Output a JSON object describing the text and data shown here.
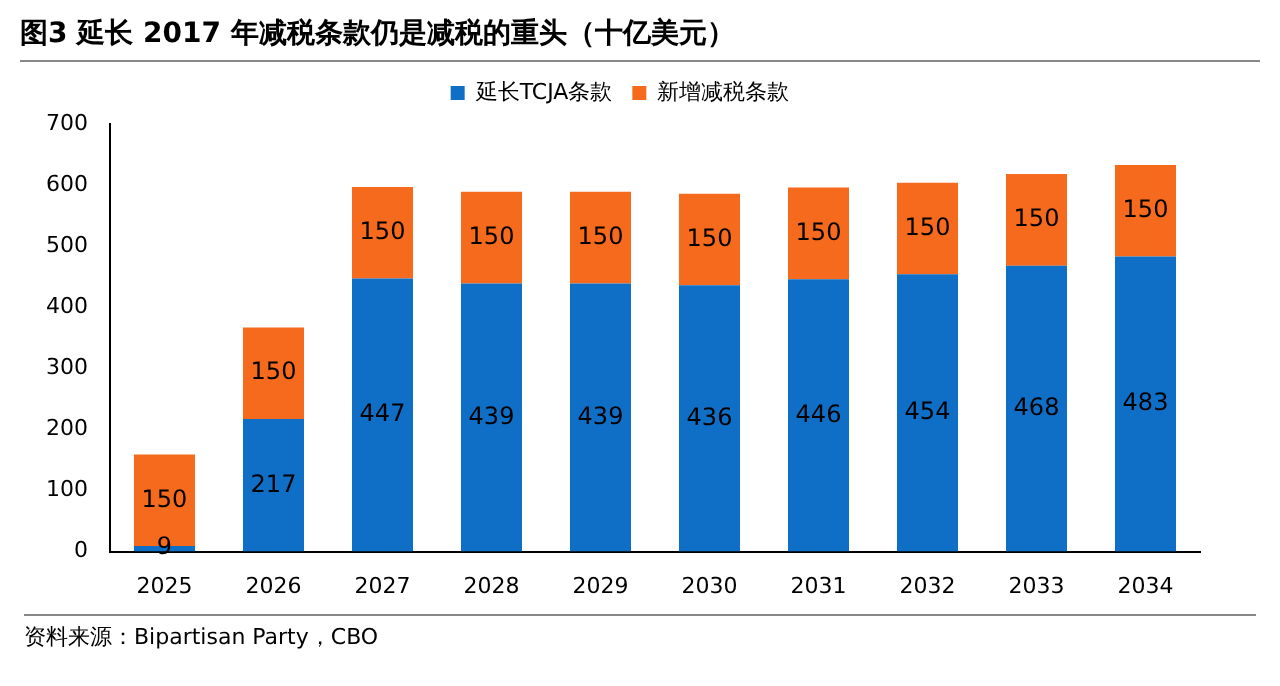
{
  "chart_data": {
    "type": "bar",
    "title": "图3  延长 2017 年减税条款仍是减税的重头（十亿美元）",
    "categories": [
      "2025",
      "2026",
      "2027",
      "2028",
      "2029",
      "2030",
      "2031",
      "2032",
      "2033",
      "2034"
    ],
    "series": [
      {
        "name": "延长TCJA条款",
        "color": "#0f6fc6",
        "values": [
          9,
          217,
          447,
          439,
          439,
          436,
          446,
          454,
          468,
          483
        ]
      },
      {
        "name": "新增减税条款",
        "color": "#f56a1c",
        "values": [
          150,
          150,
          150,
          150,
          150,
          150,
          150,
          150,
          150,
          150
        ]
      }
    ],
    "stacked": true,
    "ylim": [
      0,
      700
    ],
    "yticks": [
      0,
      100,
      200,
      300,
      400,
      500,
      600,
      700
    ],
    "grid": false,
    "legend": "top",
    "data_labels": true,
    "annotations": [
      "资料来源：Bipartisan Party，CBO"
    ]
  }
}
